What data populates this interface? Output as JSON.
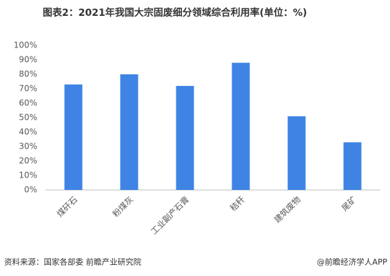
{
  "chart_data": {
    "type": "bar",
    "title": "图表2：2021年我国大宗固废细分领域综合利用率(单位：%)",
    "categories": [
      "煤矸石",
      "粉煤灰",
      "工业副产石膏",
      "秸秆",
      "建筑废物",
      "尾矿"
    ],
    "values": [
      73,
      80,
      72,
      88,
      51,
      33
    ],
    "color": "#3f84e5",
    "ylim": [
      0,
      100
    ],
    "yticks": [
      {
        "value": 0,
        "label": "0%"
      },
      {
        "value": 10,
        "label": "10%"
      },
      {
        "value": 20,
        "label": "20%"
      },
      {
        "value": 30,
        "label": "30%"
      },
      {
        "value": 40,
        "label": "40%"
      },
      {
        "value": 50,
        "label": "50%"
      },
      {
        "value": 60,
        "label": "60%"
      },
      {
        "value": 70,
        "label": "70%"
      },
      {
        "value": 80,
        "label": "80%"
      },
      {
        "value": 90,
        "label": "90%"
      },
      {
        "value": 100,
        "label": "100%"
      }
    ],
    "grid": false,
    "source": "资料来源：国家各部委 前瞻产业研究院",
    "credit": "@前瞻经济学人APP"
  }
}
